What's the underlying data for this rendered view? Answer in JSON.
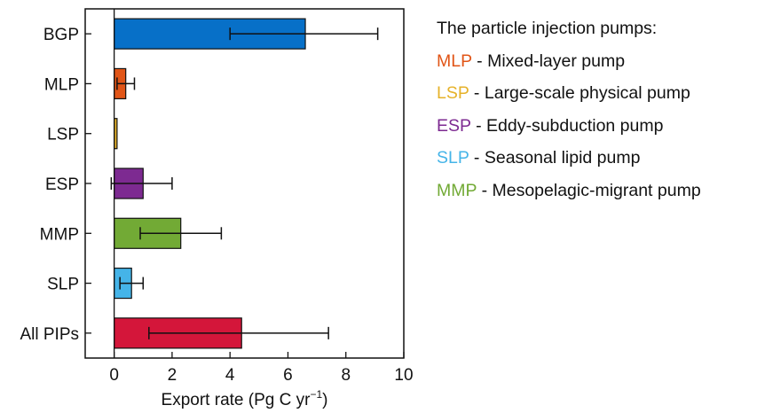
{
  "chart_data": {
    "type": "bar",
    "orientation": "horizontal",
    "categories": [
      "BGP",
      "MLP",
      "LSP",
      "ESP",
      "MMP",
      "SLP",
      "All PIPs"
    ],
    "values": [
      6.6,
      0.4,
      0.1,
      1.0,
      2.3,
      0.6,
      4.4
    ],
    "error_low": [
      4.0,
      0.1,
      0.1,
      -0.1,
      0.9,
      0.2,
      1.2
    ],
    "error_high": [
      9.1,
      0.7,
      0.1,
      2.0,
      3.7,
      1.0,
      7.4
    ],
    "colors": [
      "#0770C8",
      "#E15517",
      "#E6B22A",
      "#7D2A91",
      "#72AA35",
      "#45B4E8",
      "#D4163A"
    ],
    "xlabel": "Export rate (Pg C yr",
    "xlabel_sup": "−1",
    "xlabel_close": ")",
    "xlim": [
      -1,
      10
    ],
    "xticks": [
      "0",
      "2",
      "4",
      "6",
      "8",
      "10"
    ],
    "grid": false,
    "legend_placement": "right"
  },
  "legend": {
    "title": "The particle injection pumps:",
    "items": [
      {
        "abbr": "MLP",
        "desc": " - Mixed-layer pump",
        "color": "#E15517"
      },
      {
        "abbr": "LSP",
        "desc": " - Large-scale physical pump",
        "color": "#E6B22A"
      },
      {
        "abbr": "ESP",
        "desc": " - Eddy-subduction pump",
        "color": "#7D2A91"
      },
      {
        "abbr": "SLP",
        "desc": " - Seasonal lipid pump",
        "color": "#45B4E8"
      },
      {
        "abbr": "MMP",
        "desc": " - Mesopelagic-migrant pump",
        "color": "#72AA35"
      }
    ]
  }
}
